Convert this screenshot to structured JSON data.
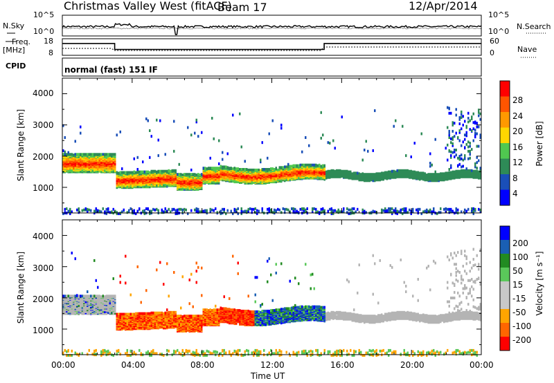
{
  "header": {
    "station": "Christmas Valley West (fitACF)",
    "beam": "Beam 17",
    "date": "12/Apr/2014",
    "program": "normal (fast) 151 IF"
  },
  "left_labels": {
    "nsky": "N.Sky",
    "freq_line1": "Freq.",
    "freq_line2": "[MHz]",
    "cpid": "CPID"
  },
  "right_labels": {
    "nsearch": "N.Search",
    "nave": "Nave"
  },
  "colors": {
    "power_scale": [
      "#0000ff",
      "#1a4fb8",
      "#2e8b57",
      "#50c850",
      "#ffd700",
      "#ff9900",
      "#ff5500",
      "#ff0000"
    ],
    "velocity_scale": [
      "#ff0000",
      "#ff6600",
      "#ffa500",
      "#c8c8c8",
      "#c8c8c8",
      "#5ac85a",
      "#228b22",
      "#1a5fb4",
      "#0000ff"
    ],
    "ground_scatter": "#b4b4b4"
  },
  "chart_data": [
    {
      "type": "line",
      "name": "noise-panel",
      "ylabel": "N.Sky",
      "yticks": [
        "10^5",
        "10^0"
      ],
      "right_yticks": [
        "10^5",
        "10^0"
      ]
    },
    {
      "type": "line",
      "name": "frequency-panel",
      "yticks": [
        "18",
        "8"
      ],
      "right_yticks": [
        "60",
        "0"
      ],
      "frequency_mhz": {
        "x_hours": [
          0,
          3.0,
          3.0,
          15.0,
          15.0,
          24
        ],
        "y": [
          15,
          15,
          11,
          11,
          15,
          15
        ]
      }
    },
    {
      "type": "heatmap",
      "name": "power",
      "xlabel": "Time UT",
      "ylabel": "Slant Range [km]",
      "colorbar_label": "Power [dB]",
      "colorbar_ticks": [
        "28",
        "24",
        "20",
        "16",
        "12",
        "8",
        "4"
      ],
      "xlim_hours": [
        0,
        24
      ],
      "ylim_km": [
        180,
        4500
      ],
      "yticks": [
        "4000",
        "3000",
        "2000",
        "1000"
      ]
    },
    {
      "type": "heatmap",
      "name": "velocity",
      "xlabel": "Time UT",
      "ylabel": "Slant Range [km]",
      "colorbar_label": "Velocity [m s⁻¹]",
      "colorbar_ticks": [
        "200",
        "100",
        "50",
        "15",
        "-15",
        "-50",
        "-100",
        "-200"
      ],
      "xlim_hours": [
        0,
        24
      ],
      "ylim_km": [
        180,
        4500
      ],
      "yticks": [
        "4000",
        "3000",
        "2000",
        "1000"
      ]
    }
  ],
  "x_axis": {
    "ticks": [
      "00:00",
      "04:00",
      "08:00",
      "12:00",
      "16:00",
      "20:00",
      "00:00"
    ],
    "label": "Time UT"
  }
}
